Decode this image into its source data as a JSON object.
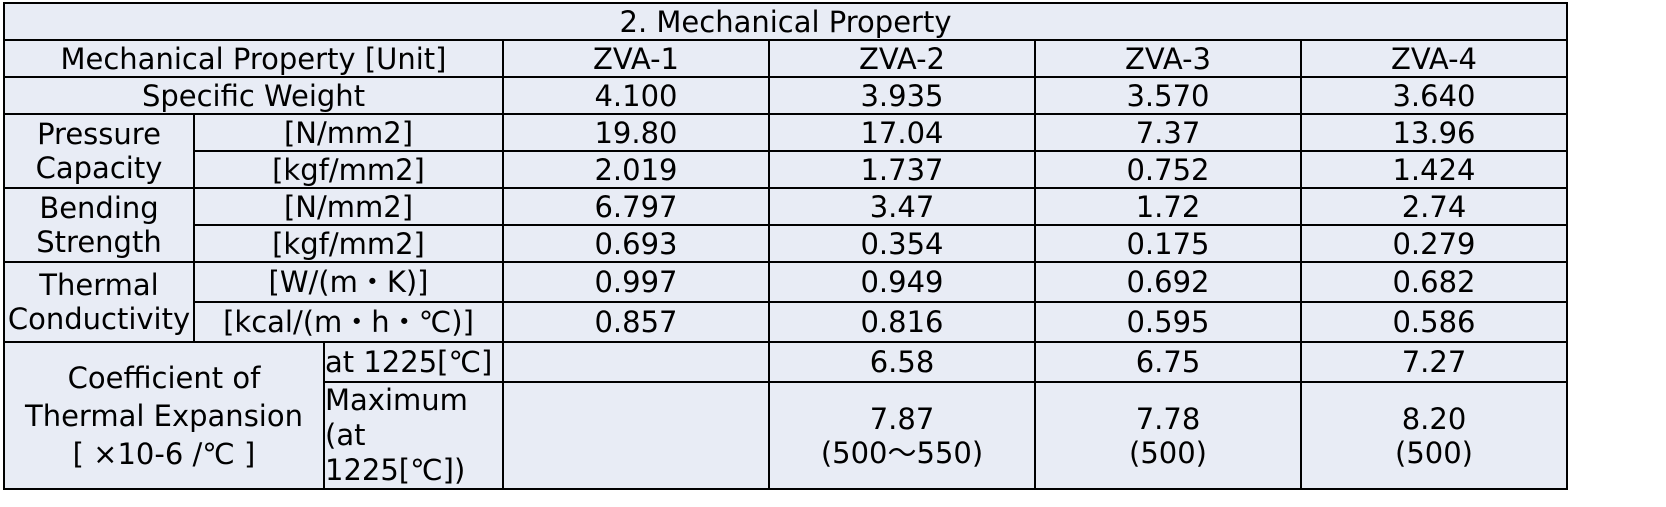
{
  "table": {
    "title": "2. Mechanical Property",
    "header": {
      "property_label": "Mechanical Property [Unit]",
      "columns": [
        "ZVA-1",
        "ZVA-2",
        "ZVA-3",
        "ZVA-4"
      ]
    },
    "specific_weight": {
      "label": "Specific Weight",
      "values": [
        "4.100",
        "3.935",
        "3.570",
        "3.640"
      ]
    },
    "pressure_capacity": {
      "label_line1": "Pressure",
      "label_line2": "Capacity",
      "rows": [
        {
          "unit": "[N/mm2]",
          "values": [
            "19.80",
            "17.04",
            "7.37",
            "13.96"
          ]
        },
        {
          "unit": "[kgf/mm2]",
          "values": [
            "2.019",
            "1.737",
            "0.752",
            "1.424"
          ]
        }
      ]
    },
    "bending_strength": {
      "label_line1": "Bending",
      "label_line2": "Strength",
      "rows": [
        {
          "unit": "[N/mm2]",
          "values": [
            "6.797",
            "3.47",
            "1.72",
            "2.74"
          ]
        },
        {
          "unit": "[kgf/mm2]",
          "values": [
            "0.693",
            "0.354",
            "0.175",
            "0.279"
          ]
        }
      ]
    },
    "thermal_conductivity": {
      "label_line1": "Thermal",
      "label_line2": "Conductivity",
      "rows": [
        {
          "unit": "[W/(m・K)]",
          "values": [
            "0.997",
            "0.949",
            "0.692",
            "0.682"
          ]
        },
        {
          "unit": "[kcal/(m・h・℃)]",
          "values": [
            "0.857",
            "0.816",
            "0.595",
            "0.586"
          ]
        }
      ]
    },
    "thermal_expansion": {
      "label_line1": "Coefficient of",
      "label_line2": "Thermal Expansion",
      "label_line3": "[ ×10-6 /℃ ]",
      "row1": {
        "condition": "at 1225[℃]",
        "values": [
          "",
          "6.58",
          "6.75",
          "7.27"
        ]
      },
      "row2": {
        "condition_line1": "Maximum",
        "condition_line2": "(at",
        "condition_line3": "1225[℃])",
        "values": [
          {
            "value": "",
            "range": ""
          },
          {
            "value": "7.87",
            "range": "(500～550)"
          },
          {
            "value": "7.78",
            "range": "(500)"
          },
          {
            "value": "8.20",
            "range": "(500)"
          }
        ]
      }
    }
  }
}
